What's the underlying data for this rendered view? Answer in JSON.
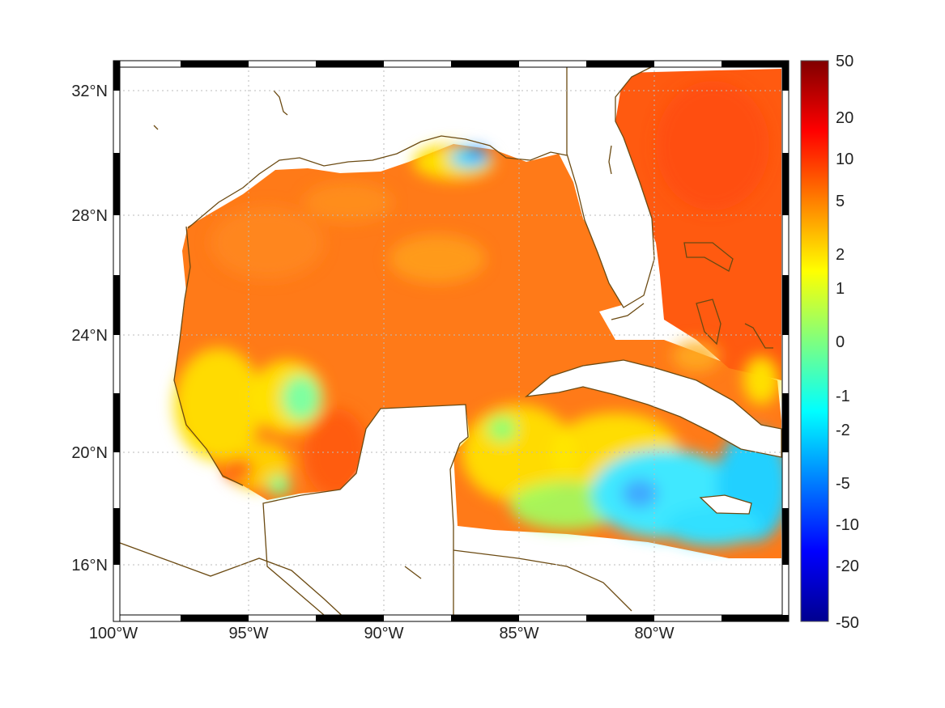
{
  "map": {
    "extent": {
      "lon_min": -100,
      "lon_max": -75,
      "lat_min": 14.2,
      "lat_max": 33
    },
    "x_ticks": [
      {
        "lon": -100,
        "label": "100°W"
      },
      {
        "lon": -95,
        "label": "95°W"
      },
      {
        "lon": -90,
        "label": "90°W"
      },
      {
        "lon": -85,
        "label": "85°W"
      },
      {
        "lon": -80,
        "label": "80°W"
      }
    ],
    "y_ticks": [
      {
        "lat": 32,
        "label": "32°N"
      },
      {
        "lat": 28,
        "label": "28°N"
      },
      {
        "lat": 24,
        "label": "24°N"
      },
      {
        "lat": 20,
        "label": "20°N"
      },
      {
        "lat": 16,
        "label": "16°N"
      }
    ],
    "grid": "dotted",
    "frame": "alternating black-white border",
    "colors": {
      "coastline": "#6b4a12",
      "land": "#ffffff",
      "ocean_dominant": "#ff7a18"
    }
  },
  "colorbar": {
    "colormap": "jet",
    "scale": "symmetric-log",
    "range": [
      -50,
      50
    ],
    "tick_labels": [
      {
        "value": 50,
        "label": "50"
      },
      {
        "value": 20,
        "label": "20"
      },
      {
        "value": 10,
        "label": "10"
      },
      {
        "value": 5,
        "label": "5"
      },
      {
        "value": 2,
        "label": "2"
      },
      {
        "value": 1,
        "label": "1"
      },
      {
        "value": 0,
        "label": "0"
      },
      {
        "value": -1,
        "label": "-1"
      },
      {
        "value": -2,
        "label": "-2"
      },
      {
        "value": -5,
        "label": "-5"
      },
      {
        "value": -10,
        "label": "-10"
      },
      {
        "value": -20,
        "label": "-20"
      },
      {
        "value": -50,
        "label": "-50"
      }
    ]
  }
}
